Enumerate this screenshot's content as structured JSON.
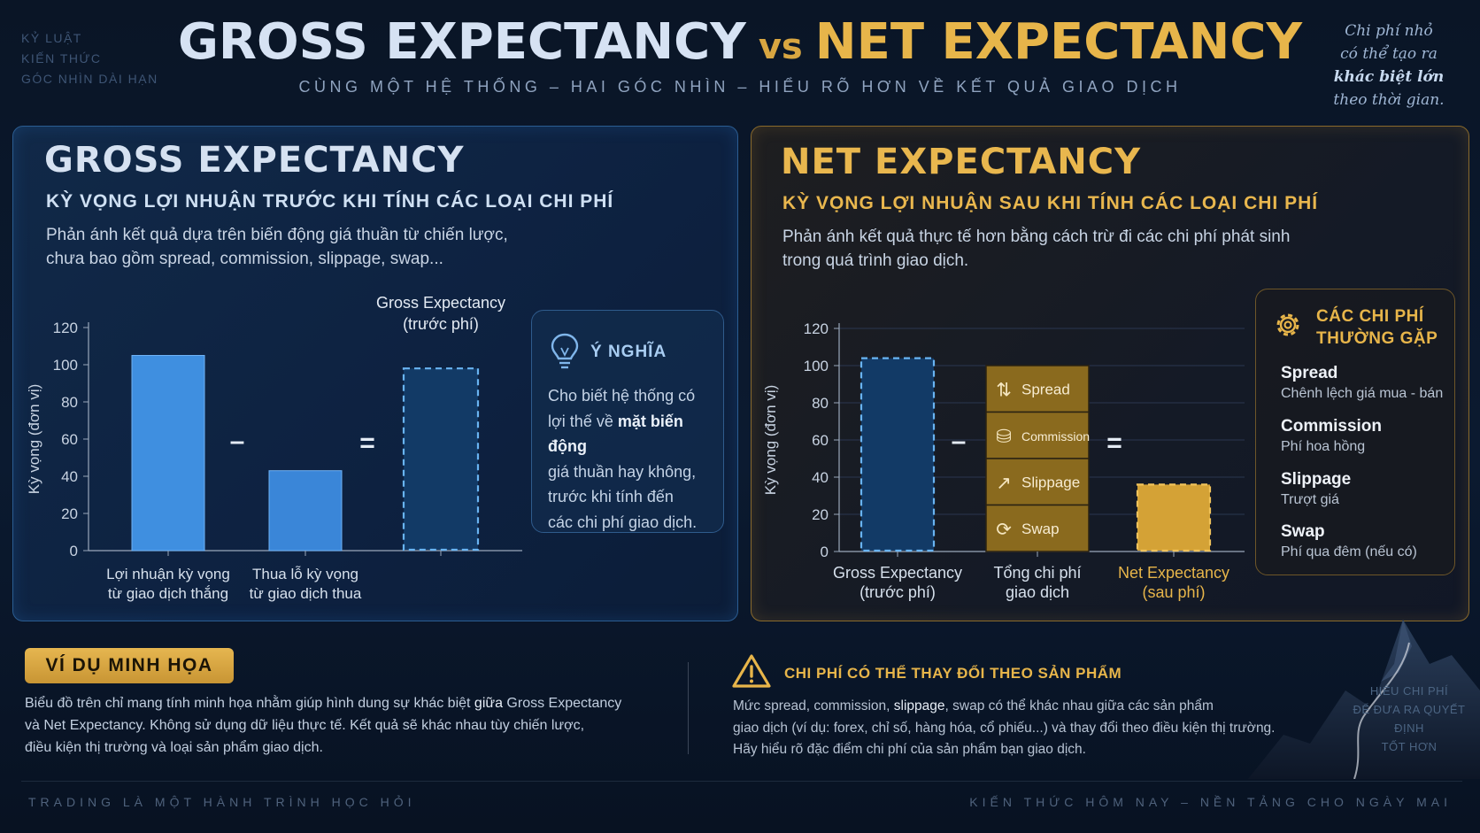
{
  "header": {
    "top_left": [
      "KỶ LUẬT",
      "KIẾN THỨC",
      "GÓC NHÌN DÀI HẠN"
    ],
    "title_gross": "GROSS EXPECTANCY",
    "title_vs": "vs",
    "title_net": "NET EXPECTANCY",
    "subtitle": "CÙNG MỘT HỆ THỐNG – HAI GÓC NHÌN – HIỂU RÕ HƠN VỀ KẾT QUẢ GIAO DỊCH",
    "quote_1": "Chi phí nhỏ",
    "quote_2": "có thể tạo ra",
    "quote_3": "khác biệt lớn",
    "quote_4": "theo thời gian."
  },
  "gross_panel": {
    "title": "GROSS EXPECTANCY",
    "subtitle": "KỲ VỌNG LỢI NHUẬN TRƯỚC KHI TÍNH CÁC LOẠI CHI PHÍ",
    "desc_1": "Phản ánh kết quả dựa trên biến động giá thuần từ chiến lược,",
    "desc_2": "chưa bao gồm spread, commission, slippage, swap...",
    "minus": "–",
    "equals": "=",
    "meaning": {
      "title": "Ý NGHĨA",
      "text_1": "Cho biết hệ thống có",
      "text_2a": "lợi thế về ",
      "text_2b": "mặt biến động",
      "text_3": "giá thuần hay không,",
      "text_4": "trước khi tính đến",
      "text_5": "các chi phí giao dịch."
    }
  },
  "net_panel": {
    "title": "NET EXPECTANCY",
    "subtitle": "KỲ VỌNG LỢI NHUẬN SAU KHI TÍNH CÁC LOẠI CHI PHÍ",
    "desc_1": "Phản ánh kết quả thực tế hơn bằng cách trừ đi các chi phí phát sinh",
    "desc_2": "trong quá trình giao dịch.",
    "minus": "–",
    "equals": "=",
    "stack_labels": [
      "Spread",
      "Commission",
      "Slippage",
      "Swap"
    ],
    "costs_box": {
      "title_1": "CÁC CHI PHÍ",
      "title_2": "THƯỜNG GẶP",
      "items": [
        {
          "name": "Spread",
          "desc": "Chênh lệch giá mua - bán"
        },
        {
          "name": "Commission",
          "desc": "Phí hoa hồng"
        },
        {
          "name": "Slippage",
          "desc": "Trượt giá"
        },
        {
          "name": "Swap",
          "desc": "Phí qua đêm (nếu có)"
        }
      ]
    }
  },
  "chart_data": [
    {
      "type": "bar",
      "ylabel": "Kỳ vọng (đơn vị)",
      "ylim": [
        0,
        120
      ],
      "yticks": [
        0,
        20,
        40,
        60,
        80,
        100,
        120
      ],
      "categories": [
        [
          "Lợi nhuận kỳ vọng",
          "từ giao dịch thắng"
        ],
        [
          "Thua lỗ kỳ vọng",
          "từ giao dịch thua"
        ],
        [
          "",
          ""
        ]
      ],
      "values": [
        105,
        43,
        98
      ],
      "top_label": [
        "Gross Expectancy",
        "(trước phí)"
      ],
      "grid": false,
      "colors": [
        "#3f8fe0",
        "#3a86d8",
        "#123a66"
      ]
    },
    {
      "type": "bar",
      "ylabel": "Kỳ vọng (đơn vị)",
      "ylim": [
        0,
        120
      ],
      "yticks": [
        0,
        20,
        40,
        60,
        80,
        100,
        120
      ],
      "categories": [
        [
          "Gross Expectancy",
          "(trước phí)"
        ],
        [
          "Tổng chi phí",
          "giao dịch"
        ],
        [
          "Net Expectancy",
          "(sau phí)"
        ]
      ],
      "values": [
        104,
        100,
        36
      ],
      "stack_segments": [
        "Spread",
        "Commission",
        "Slippage",
        "Swap"
      ],
      "grid": true,
      "colors": [
        "#123a66",
        "#8a6a1e",
        "#d4a236"
      ]
    }
  ],
  "bottom": {
    "example_badge": "VÍ DỤ MINH HỌA",
    "example_1a": "Biểu đồ trên chỉ mang tính minh họa nhằm giúp hình dung sự khác biệt ",
    "example_1b": "giữa",
    "example_1c": " Gross Expectancy",
    "example_2": "và Net Expectancy. Không sử dụng dữ liệu thực tế. Kết quả sẽ khác nhau tùy chiến lược,",
    "example_3": "điều kiện thị trường và loại sản phẩm giao dịch.",
    "warning_title": "CHI PHÍ CÓ THỂ THAY ĐỔI THEO SẢN PHẨM",
    "warning_1a": "Mức spread, commission, ",
    "warning_1b": "slippage",
    "warning_1c": ", swap có thể khác nhau giữa các sản phẩm",
    "warning_2": "giao dịch (ví dụ: forex, chỉ số, hàng hóa, cổ phiếu...) và thay đổi theo điều kiện thị trường.",
    "warning_3": "Hãy hiểu rõ đặc điểm chi phí của sản phẩm bạn giao dịch.",
    "mountain_1": "HIỂU CHI PHÍ",
    "mountain_2": "ĐỂ ĐƯA RA QUYẾT ĐỊNH",
    "mountain_3": "TỐT HƠN"
  },
  "footer": {
    "left": "TRADING LÀ MỘT HÀNH TRÌNH HỌC HỎI",
    "right": "KIẾN THỨC HÔM NAY – NỀN TẢNG CHO NGÀY MAI"
  }
}
